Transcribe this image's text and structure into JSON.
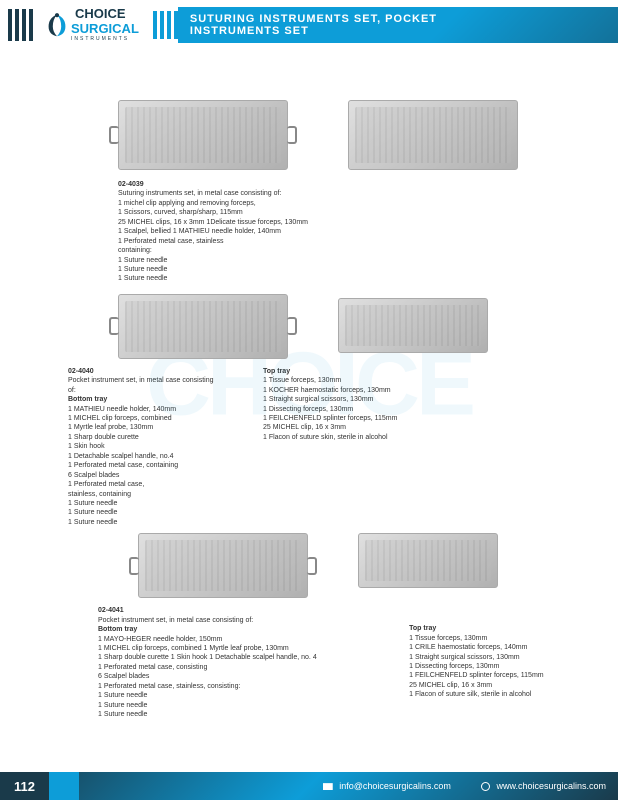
{
  "header": {
    "logo_top": "CHOICE",
    "logo_mid": "SURGICAL",
    "logo_sub": "INSTRUMENTS",
    "banner": "SUTURING INSTRUMENTS SET, POCKET\nINSTRUMENTS SET"
  },
  "product1": {
    "code": "02-4039",
    "desc": "Suturing instruments set, in metal case consisting of:",
    "lines": [
      "1 michel clip applying and removing forceps,",
      "1 Scissors, curved, sharp/sharp, 115mm",
      "25 MICHEL clips, 16 x 3mm 1Delicate tissue forceps, 130mm",
      "1 Scalpel, bellied 1 MATHIEU needle holder, 140mm",
      "1 Perforated metal case, stainless",
      "containing:",
      "1 Suture needle",
      "1 Suture needle",
      "1 Suture needle"
    ]
  },
  "product2": {
    "code": "02-4040",
    "desc": "Pocket instrument set, in metal case consisting of:",
    "bottom_label": "Bottom tray",
    "bottom": [
      "1 MATHIEU needle holder, 140mm",
      "1 MICHEL clip forceps, combined",
      "1 Myrtle leaf probe, 130mm",
      "1 Sharp double curette",
      "1 Skin hook",
      "1 Detachable scalpel handle, no.4",
      "1 Perforated metal case, containing",
      "6 Scalpel blades",
      "1 Perforated metal case,",
      "stainless, containing",
      "1 Suture needle",
      "1 Suture needle",
      "1 Suture needle"
    ],
    "top_label": "Top tray",
    "top": [
      "1 Tissue forceps, 130mm",
      "1 KOCHER haemostatic forceps, 130mm",
      "1 Straight surgical scissors, 130mm",
      "1 Dissecting forceps, 130mm",
      "1 FEILCHENFELD splinter forceps, 115mm",
      "25 MICHEL clip, 16 x 3mm",
      "1 Flacon of suture skin, sterile in alcohol"
    ]
  },
  "product3": {
    "code": "02-4041",
    "desc": "Pocket instrument set, in metal case  consisting of:",
    "bottom_label": "Bottom tray",
    "bottom": [
      "1 MAYO-HEGER needle holder, 150mm",
      "1 MICHEL clip forceps, combined  1 Myrtle leaf probe, 130mm",
      "1 Sharp double curette  1 Skin hook  1 Detachable scalpel handle, no. 4",
      "1 Perforated metal case, consisting",
      "6 Scalpel blades",
      "1 Perforated metal case, stainless, consisting:",
      "1 Suture needle",
      "1 Suture needle",
      "1 Suture needle"
    ],
    "top_label": "Top tray",
    "top": [
      "1 Tissue forceps, 130mm",
      "1 CRILE haemostatic forceps, 140mm",
      "1 Straight surgical scissors, 130mm",
      "1 Dissecting forceps, 130mm",
      "1 FEILCHENFELD splinter forceps, 115mm",
      "25 MICHEL clip, 16 x 3mm",
      "1 Flacon of suture silk, sterile in alcohol"
    ]
  },
  "footer": {
    "page": "112",
    "email": "info@choicesurgicalins.com",
    "web": "www.choicesurgicalins.com"
  }
}
